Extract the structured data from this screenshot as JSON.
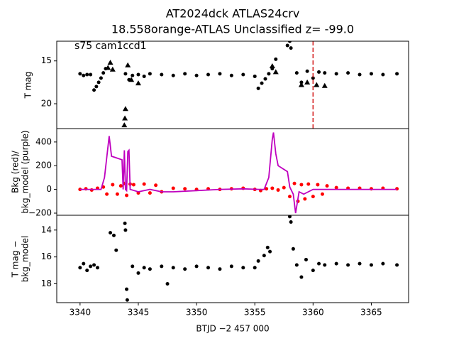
{
  "title": "AT2024dck  ATLAS24crv",
  "subtitle": "18.558orange-ATLAS Unclassified z= -99.0",
  "chart_data": [
    {
      "type": "scatter",
      "annotation": "s75 cam1ccd1",
      "ylabel": [
        "T mag"
      ],
      "xlim": [
        3338,
        3368.2
      ],
      "ylim": [
        22.9,
        12.7
      ],
      "yticks": [
        15,
        20
      ],
      "vline": {
        "x": 3360,
        "color": "#d62728"
      },
      "series": [
        {
          "color": "#000000",
          "marker": "o",
          "x": [
            3340.0,
            3340.3,
            3340.6,
            3340.9,
            3341.2,
            3341.4,
            3341.6,
            3341.8,
            3342.0,
            3342.2,
            3343.9,
            3344.2,
            3344.5,
            3345,
            3345.5,
            3346,
            3347,
            3348,
            3349,
            3350,
            3351,
            3352,
            3353,
            3354,
            3355,
            3355.3,
            3355.6,
            3355.9,
            3356.2,
            3356.5,
            3356.8,
            3357.8,
            3358.0,
            3358.1,
            3358.6,
            3359,
            3359.5,
            3360,
            3360.5,
            3361,
            3362,
            3363,
            3364,
            3365,
            3366,
            3367.2
          ],
          "values": [
            16.5,
            16.7,
            16.6,
            16.6,
            18.4,
            18.0,
            17.5,
            17.0,
            16.4,
            15.9,
            16.5,
            17.2,
            16.7,
            16.6,
            16.8,
            16.5,
            16.6,
            16.7,
            16.5,
            16.7,
            16.6,
            16.5,
            16.7,
            16.6,
            16.8,
            18.2,
            17.6,
            17.1,
            16.5,
            15.9,
            14.8,
            13.2,
            12.7,
            13.5,
            16.4,
            17.5,
            16.2,
            17.0,
            16.3,
            16.4,
            16.5,
            16.4,
            16.6,
            16.5,
            16.6,
            16.5
          ]
        },
        {
          "color": "#000000",
          "marker": "^",
          "x": [
            3342.4,
            3342.6,
            3342.8,
            3343.8,
            3343.85,
            3343.9,
            3344.1,
            3344.4,
            3345.0,
            3356.5,
            3356.8,
            3359.0,
            3359.5,
            3360.3,
            3361.0
          ],
          "values": [
            15.8,
            15.2,
            16.0,
            22.5,
            21.7,
            20.6,
            15.5,
            17.2,
            17.6,
            15.6,
            16.3,
            17.8,
            17.5,
            17.8,
            17.9
          ]
        }
      ]
    },
    {
      "type": "scatter",
      "ylabel": [
        "Bkg (red)/",
        "bkg_model (purple)"
      ],
      "xlim": [
        3338,
        3368.2
      ],
      "ylim": [
        -218,
        513
      ],
      "yticks": [
        {
          "value": -200,
          "label": "−200"
        },
        0,
        200,
        400
      ],
      "series": [
        {
          "color": "#ff0000",
          "marker": "o",
          "x": [
            3340,
            3340.5,
            3341,
            3341.5,
            3342,
            3342.3,
            3342.8,
            3343.2,
            3343.5,
            3343.8,
            3344,
            3344.3,
            3344.6,
            3345,
            3345.5,
            3346,
            3346.5,
            3347,
            3348,
            3349,
            3350,
            3351,
            3352,
            3353,
            3354,
            3355,
            3355.5,
            3356,
            3356.5,
            3357,
            3357.5,
            3358,
            3358.4,
            3358.7,
            3359,
            3359.3,
            3359.6,
            3360,
            3360.4,
            3360.8,
            3361.2,
            3362,
            3363,
            3364,
            3365,
            3366,
            3367.2
          ],
          "values": [
            0,
            5,
            -5,
            10,
            20,
            -40,
            40,
            -40,
            30,
            50,
            -50,
            45,
            40,
            -30,
            45,
            -30,
            35,
            -20,
            10,
            5,
            0,
            5,
            0,
            5,
            10,
            0,
            -10,
            5,
            10,
            -5,
            15,
            -60,
            50,
            -100,
            40,
            -80,
            45,
            -60,
            40,
            -40,
            30,
            15,
            10,
            10,
            5,
            10,
            5
          ]
        },
        {
          "color": "#bf00bf",
          "marker": "line",
          "x": [
            3340,
            3341.8,
            3342.1,
            3342.5,
            3342.7,
            3343.6,
            3343.7,
            3343.8,
            3343.9,
            3344.0,
            3344.1,
            3344.2,
            3344.3,
            3345,
            3346,
            3347,
            3348,
            3350,
            3352,
            3354,
            3355.4,
            3355.8,
            3356.2,
            3356.5,
            3356.6,
            3356.8,
            3357.0,
            3357.8,
            3358.0,
            3358.3,
            3358.5,
            3358.8,
            3359.2,
            3360,
            3361,
            3362,
            3364,
            3367.2
          ],
          "values": [
            0,
            0,
            100,
            450,
            280,
            250,
            0,
            330,
            0,
            -10,
            320,
            330,
            0,
            -20,
            0,
            -20,
            -20,
            -10,
            0,
            5,
            0,
            0,
            100,
            420,
            480,
            300,
            200,
            150,
            20,
            -40,
            -200,
            -20,
            -40,
            0,
            0,
            0,
            0,
            0
          ]
        }
      ]
    },
    {
      "type": "scatter",
      "ylabel": [
        "T mag −",
        "bkg_model"
      ],
      "xlabel": "BTJD −2 457 000",
      "xlim": [
        3338,
        3368.2
      ],
      "xticks": [
        3340,
        3345,
        3350,
        3355,
        3360,
        3365
      ],
      "ylim": [
        19.4,
        12.9
      ],
      "yticks": [
        14,
        16,
        18
      ],
      "series": [
        {
          "color": "#000000",
          "marker": "o",
          "x": [
            3340,
            3340.3,
            3340.6,
            3340.9,
            3341.2,
            3341.5,
            3342.6,
            3342.9,
            3343.1,
            3343.85,
            3343.9,
            3344.0,
            3344.05,
            3344.5,
            3345,
            3345.5,
            3346,
            3347,
            3347.5,
            3348,
            3349,
            3350,
            3351,
            3352,
            3353,
            3354,
            3355,
            3355.3,
            3355.8,
            3356.1,
            3356.3,
            3357.2,
            3358.0,
            3358.1,
            3358.3,
            3358.6,
            3359,
            3359.4,
            3360,
            3360.5,
            3361,
            3362,
            3363,
            3364,
            3365,
            3366,
            3367.2
          ],
          "values": [
            16.8,
            16.5,
            17.0,
            16.7,
            16.6,
            16.8,
            14.2,
            14.4,
            15.5,
            13.5,
            14.0,
            18.4,
            19.2,
            16.7,
            17.2,
            16.8,
            16.9,
            16.7,
            18.0,
            16.8,
            16.9,
            16.7,
            16.8,
            16.9,
            16.7,
            16.8,
            16.8,
            16.3,
            15.9,
            15.3,
            15.6,
            12.7,
            13.0,
            13.4,
            15.4,
            16.6,
            17.5,
            16.2,
            17.0,
            16.5,
            16.6,
            16.5,
            16.6,
            16.5,
            16.6,
            16.5,
            16.6
          ]
        }
      ]
    }
  ]
}
